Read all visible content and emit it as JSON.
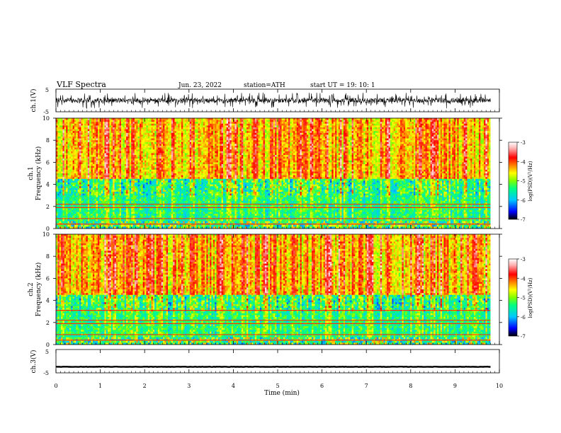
{
  "header": {
    "title": "VLF  Spectra",
    "date": "Jun. 23, 2022",
    "station": "station=ATH",
    "start": "start  UT  =    19: 10: 1"
  },
  "chart_data": [
    {
      "type": "line",
      "panel": "ch1-waveform",
      "ylabel": "ch.1(V)",
      "ylim": [
        -5,
        5
      ],
      "y_ticks": [
        "5",
        "-5"
      ],
      "xlim": [
        0,
        10
      ],
      "description_values": {
        "baseline_V": 0,
        "typical_amplitude_V": 1.2,
        "max_spike_V": 3.5,
        "data_end_min": 9.8
      },
      "line_color": "#000000"
    },
    {
      "type": "heatmap",
      "panel": "ch1-spectrogram",
      "ylabel": "ch.1\nFrequency (kHz)",
      "ylabel_line1": "ch.1",
      "ylabel_line2": "Frequency  (kHz)",
      "ylim": [
        0,
        10
      ],
      "y_ticks": [
        "0",
        "2",
        "4",
        "6",
        "8",
        "10"
      ],
      "xlim": [
        0,
        10
      ],
      "data_end_min": 9.8,
      "narrowband_lines_kHz": [
        0.4,
        0.9,
        1.9,
        2.2
      ],
      "colorbar": {
        "label": "log(PSD)(V²/Hz)",
        "range": [
          -7,
          -3
        ],
        "ticks": [
          "-3",
          "-4",
          "-5",
          "-6",
          "-7"
        ]
      }
    },
    {
      "type": "heatmap",
      "panel": "ch2-spectrogram",
      "ylabel_line1": "ch.2",
      "ylabel_line2": "Frequency  (kHz)",
      "ylim": [
        0,
        10
      ],
      "y_ticks": [
        "0",
        "2",
        "4",
        "6",
        "8",
        "10"
      ],
      "xlim": [
        0,
        10
      ],
      "data_end_min": 9.8,
      "narrowband_lines_kHz": [
        0.4,
        0.9,
        1.9,
        2.2,
        3.1
      ],
      "colorbar": {
        "label": "log(PSD)(V²/Hz)",
        "range": [
          -7,
          -3
        ],
        "ticks": [
          "-3",
          "-4",
          "-5",
          "-6",
          "-7"
        ]
      }
    },
    {
      "type": "line",
      "panel": "ch3-waveform",
      "ylabel": "ch.3(V)",
      "ylim": [
        -5,
        5
      ],
      "y_ticks": [
        "5",
        "-5"
      ],
      "xlim": [
        0,
        10
      ],
      "description_values": {
        "baseline_V": -2.4,
        "typical_amplitude_V": 0.15,
        "data_end_min": 9.8
      },
      "line_color": "#000000",
      "xlabel": "Time  (min)",
      "x_ticks": [
        "0",
        "1",
        "2",
        "3",
        "4",
        "5",
        "6",
        "7",
        "8",
        "9",
        "10"
      ]
    }
  ],
  "colors": {
    "colormap": [
      "#000000",
      "#0000ff",
      "#00c8ff",
      "#00ff80",
      "#80ff00",
      "#ffff00",
      "#ff8000",
      "#ff0000",
      "#ffb0b0",
      "#ffffff"
    ]
  }
}
